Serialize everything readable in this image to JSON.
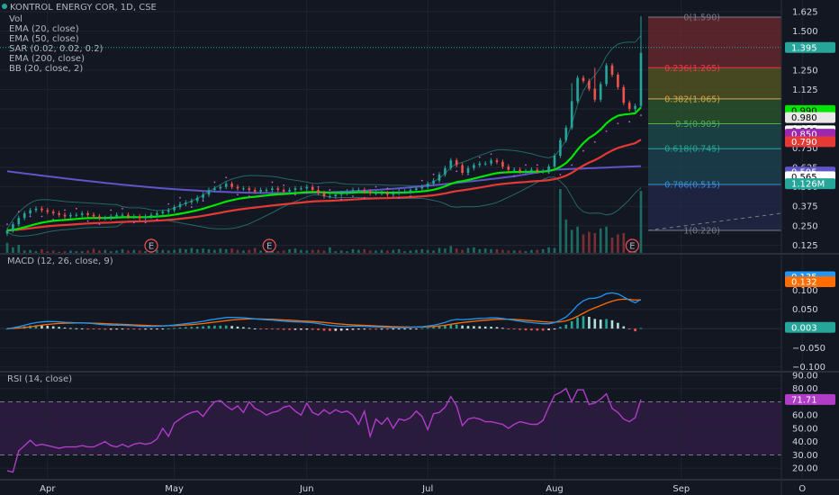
{
  "legend": {
    "symbol": "KONTROL ENERGY COR, 1D, CSE",
    "lines": [
      "Vol",
      "EMA (20, close)",
      "EMA (50, close)",
      "SAR (0.02, 0.02, 0.2)",
      "EMA (200, close)",
      "BB (20, close, 2)"
    ]
  },
  "colors": {
    "background": "#131722",
    "grid": "#1f2433",
    "up": "#26a69a",
    "down": "#ef5350",
    "ema20": "#00e600",
    "ema50": "#e53935",
    "ema200": "#5e55c8",
    "bb": "#26a69a",
    "macd": "#2196f3",
    "signal": "#ff6d00",
    "rsi": "#b03cc8",
    "rsi_band": "#2a1a3d"
  },
  "price_axis": {
    "ticks": [
      "1.625",
      "1.500",
      "1.250",
      "1.125",
      "1.000",
      "0.875",
      "0.750",
      "0.625",
      "0.500",
      "0.375",
      "0.250",
      "0.125"
    ],
    "tags": [
      {
        "text": "1.395",
        "bg": "#26a69a",
        "fg": "#ffffff",
        "v": 1.395
      },
      {
        "text": "0.990",
        "bg": "#00e600",
        "fg": "#000000",
        "v": 0.99
      },
      {
        "text": "0.980",
        "bg": "#e8e8e8",
        "fg": "#000000",
        "v": 0.945
      },
      {
        "text": "0.860",
        "bg": "#ffffff",
        "fg": "#000000",
        "v": 0.86
      },
      {
        "text": "0.850",
        "bg": "#9c27b0",
        "fg": "#ffffff",
        "v": 0.838
      },
      {
        "text": "0.790",
        "bg": "#e53935",
        "fg": "#ffffff",
        "v": 0.79
      },
      {
        "text": "0.595",
        "bg": "#5e55c8",
        "fg": "#ffffff",
        "v": 0.595
      },
      {
        "text": "0.565",
        "bg": "#ffffff",
        "fg": "#000000",
        "v": 0.565
      },
      {
        "text": "1.126M",
        "bg": "#26a69a",
        "fg": "#ffffff",
        "v": 0.52
      }
    ]
  },
  "fib": [
    {
      "label": "0(1.590)",
      "v": 1.59,
      "color": "#787b86"
    },
    {
      "label": "0.236(1.265)",
      "v": 1.265,
      "color": "#f23645"
    },
    {
      "label": "0.382(1.065)",
      "v": 1.065,
      "color": "#d4a84a"
    },
    {
      "label": "0.5(0.905)",
      "v": 0.905,
      "color": "#4caf50"
    },
    {
      "label": "0.618(0.745)",
      "v": 0.745,
      "color": "#26a69a"
    },
    {
      "label": "0.786(0.515)",
      "v": 0.515,
      "color": "#3b8ed8"
    },
    {
      "label": "1(0.220)",
      "v": 0.22,
      "color": "#787b86"
    }
  ],
  "macd": {
    "title": "MACD (12, 26, close, 9)",
    "ticks": [
      "0.100",
      "0.050",
      "−0.050",
      "−0.100"
    ],
    "tags": [
      {
        "text": "0.135",
        "bg": "#2196f3",
        "fg": "#ffffff",
        "v": 0.135
      },
      {
        "text": "0.132",
        "bg": "#ff6d00",
        "fg": "#ffffff",
        "v": 0.122
      },
      {
        "text": "0.003",
        "bg": "#26a69a",
        "fg": "#ffffff",
        "v": 0.003
      }
    ]
  },
  "rsi": {
    "title": "RSI (14, close)",
    "ticks": [
      "90.00",
      "80.00",
      "70.00",
      "60.00",
      "50.00",
      "40.00",
      "30.00",
      "20.00"
    ],
    "tag": {
      "text": "71.71",
      "bg": "#b03cc8",
      "fg": "#ffffff",
      "v": 71.71
    }
  },
  "time_axis": {
    "ticks": [
      "Apr",
      "May",
      "Jun",
      "Jul",
      "Aug",
      "Sep",
      "O"
    ]
  },
  "earnings_marker": "E",
  "chart_data": {
    "type": "candlestick",
    "price_range": [
      0.07,
      1.7
    ],
    "x_range": [
      0,
      150
    ],
    "x_ticks": [
      {
        "label": "Apr",
        "x": 7
      },
      {
        "label": "May",
        "x": 29
      },
      {
        "label": "Jun",
        "x": 52
      },
      {
        "label": "Jul",
        "x": 73
      },
      {
        "label": "Aug",
        "x": 95
      },
      {
        "label": "Sep",
        "x": 117
      },
      {
        "label": "O",
        "x": 138
      }
    ],
    "closes": [
      0.22,
      0.26,
      0.3,
      0.33,
      0.35,
      0.36,
      0.35,
      0.34,
      0.33,
      0.32,
      0.31,
      0.32,
      0.32,
      0.33,
      0.32,
      0.31,
      0.3,
      0.3,
      0.31,
      0.32,
      0.32,
      0.31,
      0.31,
      0.3,
      0.31,
      0.32,
      0.33,
      0.34,
      0.35,
      0.37,
      0.39,
      0.4,
      0.41,
      0.43,
      0.45,
      0.48,
      0.49,
      0.5,
      0.52,
      0.5,
      0.49,
      0.49,
      0.48,
      0.47,
      0.48,
      0.48,
      0.49,
      0.48,
      0.47,
      0.48,
      0.49,
      0.49,
      0.5,
      0.48,
      0.46,
      0.44,
      0.44,
      0.45,
      0.46,
      0.47,
      0.48,
      0.48,
      0.47,
      0.46,
      0.46,
      0.46,
      0.45,
      0.46,
      0.47,
      0.47,
      0.48,
      0.49,
      0.5,
      0.52,
      0.54,
      0.58,
      0.62,
      0.67,
      0.64,
      0.59,
      0.62,
      0.64,
      0.65,
      0.65,
      0.67,
      0.66,
      0.63,
      0.61,
      0.61,
      0.6,
      0.6,
      0.61,
      0.6,
      0.6,
      0.63,
      0.7,
      0.8,
      0.88,
      1.05,
      1.2,
      1.18,
      1.13,
      1.06,
      1.16,
      1.28,
      1.22,
      1.14,
      1.04,
      1.0,
      1.02,
      1.36
    ],
    "volumes": [
      0.17,
      0.1,
      0.14,
      0.05,
      0.06,
      0.04,
      0.07,
      0.04,
      0.05,
      0.03,
      0.04,
      0.05,
      0.04,
      0.04,
      0.05,
      0.08,
      0.05,
      0.06,
      0.04,
      0.05,
      0.07,
      0.05,
      0.06,
      0.05,
      0.04,
      0.04,
      0.06,
      0.06,
      0.05,
      0.06,
      0.08,
      0.07,
      0.09,
      0.07,
      0.08,
      0.07,
      0.06,
      0.08,
      0.07,
      0.08,
      0.06,
      0.05,
      0.06,
      0.09,
      0.05,
      0.04,
      0.08,
      0.04,
      0.05,
      0.07,
      0.08,
      0.06,
      0.05,
      0.06,
      0.06,
      0.05,
      0.1,
      0.04,
      0.05,
      0.04,
      0.07,
      0.06,
      0.07,
      0.05,
      0.05,
      0.06,
      0.05,
      0.06,
      0.07,
      0.04,
      0.05,
      0.06,
      0.07,
      0.06,
      0.05,
      0.09,
      0.08,
      0.12,
      0.08,
      0.06,
      0.09,
      0.1,
      0.07,
      0.08,
      0.07,
      0.07,
      0.06,
      0.05,
      0.05,
      0.05,
      0.04,
      0.06,
      0.06,
      0.07,
      0.1,
      0.09,
      1.0,
      0.53,
      0.37,
      0.42,
      0.3,
      0.34,
      0.32,
      0.39,
      0.42,
      0.25,
      0.3,
      0.32,
      0.16,
      0.19,
      0.97
    ],
    "macd_range": [
      -0.11,
      0.19
    ],
    "rsi_range": [
      12,
      92
    ],
    "rsi_values": [
      18,
      17,
      33,
      37,
      41,
      37,
      38,
      37,
      36,
      35,
      36,
      36,
      36,
      37,
      36,
      36,
      38,
      40,
      37,
      36,
      38,
      36,
      38,
      39,
      38,
      39,
      42,
      50,
      44,
      54,
      57,
      60,
      62,
      63,
      59,
      65,
      70,
      71,
      67,
      64,
      67,
      62,
      70,
      65,
      63,
      60,
      62,
      63,
      66,
      67,
      63,
      60,
      69,
      62,
      60,
      64,
      61,
      64,
      62,
      63,
      60,
      53,
      63,
      44,
      57,
      53,
      58,
      50,
      57,
      56,
      58,
      63,
      59,
      49,
      61,
      62,
      66,
      74,
      67,
      52,
      57,
      58,
      57,
      55,
      55,
      54,
      53,
      50,
      53,
      55,
      54,
      53,
      53,
      56,
      66,
      75,
      77,
      80,
      70,
      79,
      79,
      68,
      69,
      72,
      76,
      65,
      62,
      57,
      55,
      58,
      71.71
    ]
  }
}
